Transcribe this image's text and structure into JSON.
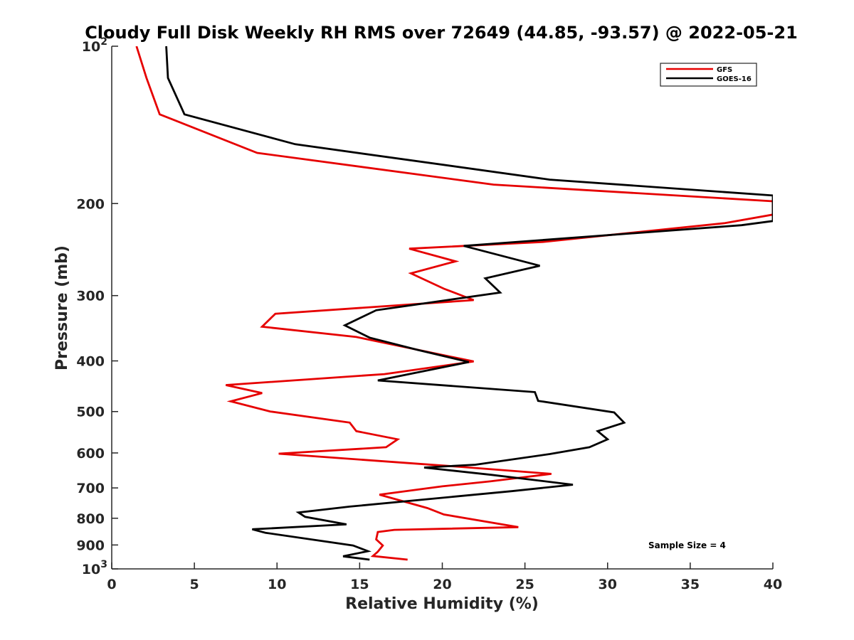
{
  "chart_data": {
    "type": "line",
    "title": "Cloudy Full Disk Weekly RH RMS over 72649 (44.85, -93.57) @ 2022-05-21",
    "xlabel": "Relative Humidity (%)",
    "ylabel": "Pressure (mb)",
    "xlim": [
      0,
      40
    ],
    "ylim": [
      100,
      1000
    ],
    "y_scale": "log",
    "y_reversed": true,
    "grid": false,
    "legend_position": "top-right",
    "x_ticks": [
      "0",
      "5",
      "10",
      "15",
      "20",
      "25",
      "30",
      "35",
      "40"
    ],
    "y_ticks": [
      {
        "value": 100,
        "base": "10",
        "exp": "2"
      },
      {
        "value": 200,
        "label": "200"
      },
      {
        "value": 300,
        "label": "300"
      },
      {
        "value": 400,
        "label": "400"
      },
      {
        "value": 500,
        "label": "500"
      },
      {
        "value": 600,
        "label": "600"
      },
      {
        "value": 700,
        "label": "700"
      },
      {
        "value": 800,
        "label": "800"
      },
      {
        "value": 900,
        "label": "900"
      },
      {
        "value": 1000,
        "base": "10",
        "exp": "3"
      }
    ],
    "annotation": "Sample Size = 4",
    "series": [
      {
        "name": "GFS",
        "color": "#e60000",
        "points": [
          [
            1.5,
            100
          ],
          [
            2.1,
            115
          ],
          [
            2.9,
            135
          ],
          [
            8.8,
            160
          ],
          [
            23.1,
            184
          ],
          [
            40.0,
            198
          ],
          [
            40.0,
            210
          ],
          [
            37.1,
            218
          ],
          [
            26.0,
            237
          ],
          [
            18.0,
            244
          ],
          [
            20.8,
            258
          ],
          [
            18.1,
            272
          ],
          [
            20.1,
            291
          ],
          [
            21.9,
            306
          ],
          [
            9.9,
            325
          ],
          [
            9.1,
            344
          ],
          [
            14.8,
            360
          ],
          [
            21.9,
            401
          ],
          [
            16.5,
            424
          ],
          [
            6.9,
            445
          ],
          [
            9.1,
            461
          ],
          [
            7.2,
            478
          ],
          [
            9.6,
            500
          ],
          [
            14.4,
            525
          ],
          [
            14.8,
            545
          ],
          [
            17.3,
            565
          ],
          [
            16.6,
            585
          ],
          [
            10.1,
            602
          ],
          [
            21.1,
            638
          ],
          [
            26.6,
            658
          ],
          [
            22.9,
            680
          ],
          [
            20.0,
            695
          ],
          [
            16.2,
            721
          ],
          [
            19.1,
            765
          ],
          [
            20.1,
            787
          ],
          [
            24.6,
            832
          ],
          [
            17.1,
            842
          ],
          [
            16.1,
            850
          ],
          [
            16.0,
            878
          ],
          [
            16.4,
            902
          ],
          [
            16.1,
            927
          ],
          [
            15.8,
            945
          ],
          [
            17.9,
            960
          ]
        ]
      },
      {
        "name": "GOES-16",
        "color": "#000000",
        "points": [
          [
            3.3,
            100
          ],
          [
            3.4,
            115
          ],
          [
            4.4,
            135
          ],
          [
            11.1,
            154
          ],
          [
            26.5,
            180
          ],
          [
            40.0,
            193
          ],
          [
            40.0,
            216
          ],
          [
            38.1,
            220
          ],
          [
            21.3,
            241
          ],
          [
            25.9,
            263
          ],
          [
            22.6,
            278
          ],
          [
            23.5,
            296
          ],
          [
            16.0,
            320
          ],
          [
            14.1,
            342
          ],
          [
            15.6,
            361
          ],
          [
            18.5,
            381
          ],
          [
            21.6,
            402
          ],
          [
            16.1,
            436
          ],
          [
            25.6,
            459
          ],
          [
            25.8,
            477
          ],
          [
            30.4,
            502
          ],
          [
            31.0,
            525
          ],
          [
            29.4,
            545
          ],
          [
            30.0,
            565
          ],
          [
            28.9,
            585
          ],
          [
            26.5,
            603
          ],
          [
            22.0,
            632
          ],
          [
            18.9,
            640
          ],
          [
            23.0,
            661
          ],
          [
            27.9,
            690
          ],
          [
            24.2,
            710
          ],
          [
            14.4,
            760
          ],
          [
            11.3,
            780
          ],
          [
            11.7,
            795
          ],
          [
            14.2,
            822
          ],
          [
            8.5,
            840
          ],
          [
            9.3,
            853
          ],
          [
            14.6,
            902
          ],
          [
            15.5,
            925
          ],
          [
            14.0,
            946
          ],
          [
            15.6,
            960
          ]
        ]
      }
    ]
  }
}
